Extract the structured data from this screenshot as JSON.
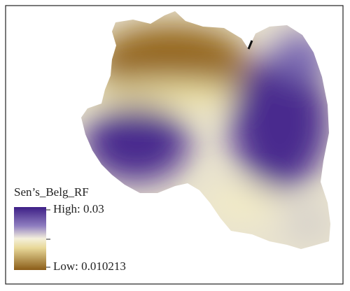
{
  "legend": {
    "title": "Sen’s_Belg_RF",
    "high": "High: 0.03",
    "low": "Low: 0.010213"
  }
}
